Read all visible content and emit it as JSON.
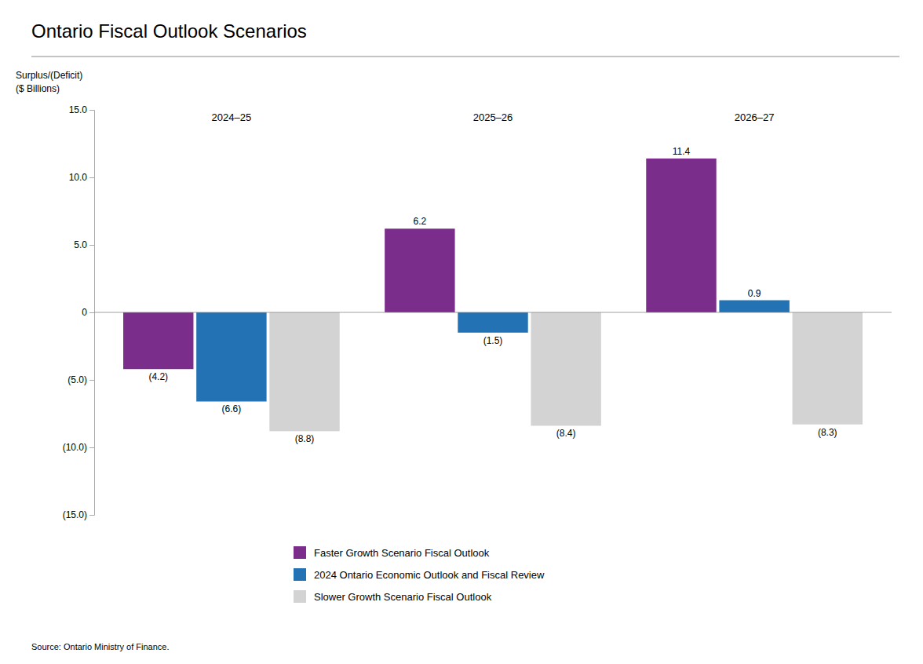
{
  "chart_data": {
    "type": "bar",
    "title": "Ontario Fiscal Outlook Scenarios",
    "ylabel": [
      "Surplus/(Deficit)",
      "($ Billions)"
    ],
    "source": "Source: Ontario Ministry of Finance.",
    "categories": [
      "2024–25",
      "2025–26",
      "2026–27"
    ],
    "series": [
      {
        "name": "Faster Growth Scenario Fiscal Outlook",
        "color": "#7b2d8b",
        "values": [
          -4.2,
          6.2,
          11.4
        ],
        "value_labels": [
          "(4.2)",
          "6.2",
          "11.4"
        ]
      },
      {
        "name": "2024 Ontario Economic Outlook and Fiscal Review",
        "color": "#2372b4",
        "values": [
          -6.6,
          -1.5,
          0.9
        ],
        "value_labels": [
          "(6.6)",
          "(1.5)",
          "0.9"
        ]
      },
      {
        "name": "Slower Growth Scenario Fiscal Outlook",
        "color": "#d3d3d3",
        "values": [
          -8.8,
          -8.4,
          -8.3
        ],
        "value_labels": [
          "(8.8)",
          "(8.4)",
          "(8.3)"
        ]
      }
    ],
    "ylim": [
      -15,
      15
    ],
    "yticks": [
      {
        "value": -15,
        "label": "(15.0)"
      },
      {
        "value": -10,
        "label": "(10.0)"
      },
      {
        "value": -5,
        "label": "(5.0)"
      },
      0,
      {
        "value": 5,
        "label": "5.0"
      },
      {
        "value": 10,
        "label": "10.0"
      },
      {
        "value": 15,
        "label": "15.0"
      }
    ],
    "grid": false,
    "legend": "bottom",
    "data_labels": true
  }
}
